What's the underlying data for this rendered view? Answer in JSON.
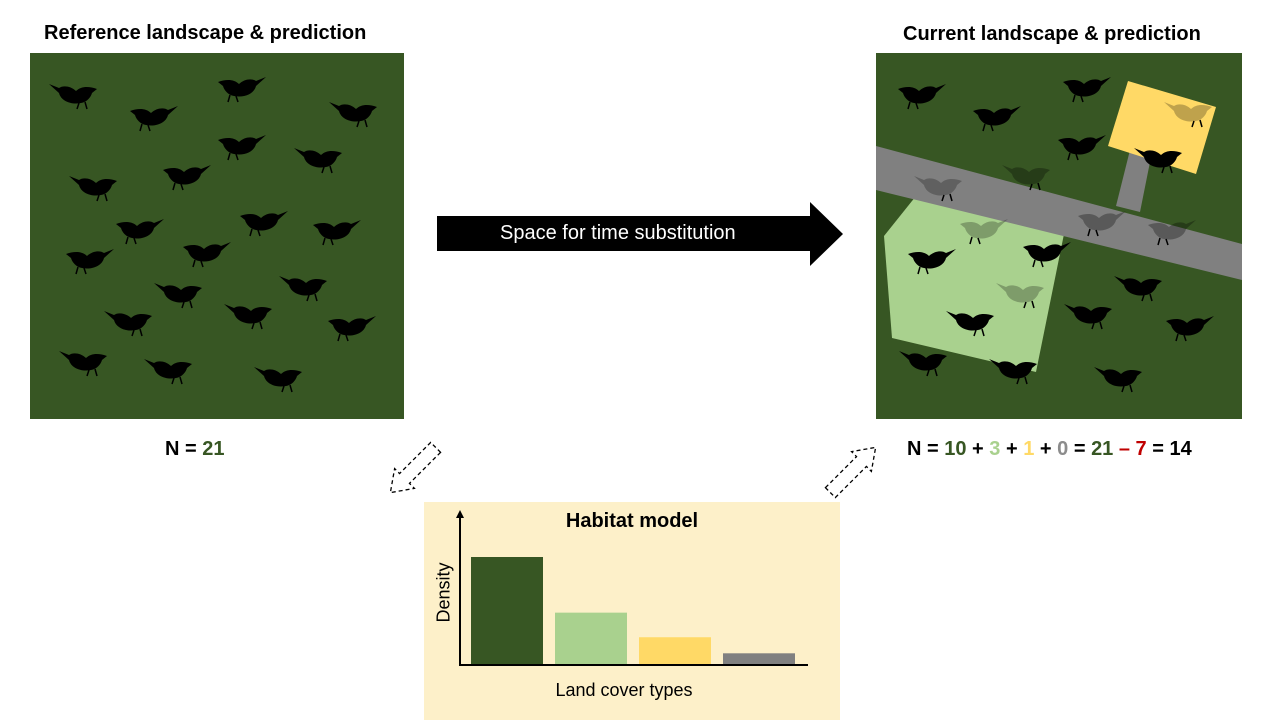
{
  "left_panel": {
    "title": "Reference landscape & prediction"
  },
  "right_panel": {
    "title": "Current landscape & prediction"
  },
  "arrow": {
    "label": "Space for time substitution"
  },
  "left_count": {
    "prefix": "N = ",
    "value": "21"
  },
  "right_count": {
    "parts": [
      {
        "text": "N = ",
        "color": "#000000"
      },
      {
        "text": "10",
        "color": "#375623"
      },
      {
        "text": " + ",
        "color": "#000000"
      },
      {
        "text": "3",
        "color": "#a9d18e"
      },
      {
        "text": " + ",
        "color": "#000000"
      },
      {
        "text": "1",
        "color": "#ffd966"
      },
      {
        "text": " + ",
        "color": "#000000"
      },
      {
        "text": "0",
        "color": "#8c8c8c"
      },
      {
        "text": " = ",
        "color": "#000000"
      },
      {
        "text": "21",
        "color": "#375623"
      },
      {
        "text": " – 7",
        "color": "#c00000"
      },
      {
        "text": " = 14",
        "color": "#000000"
      }
    ]
  },
  "habitat_model": {
    "title": "Habitat model",
    "xlabel": "Land cover types",
    "ylabel": "Density"
  },
  "colors": {
    "forest": "#375623",
    "grassland": "#a9d18e",
    "yellow_patch": "#ffd966",
    "road": "#808080",
    "bird": "#000000"
  },
  "chart_data": {
    "type": "bar",
    "title": "Habitat model",
    "xlabel": "Land cover types",
    "ylabel": "Density",
    "categories": [
      "",
      "",
      "",
      ""
    ],
    "values": [
      1.0,
      0.48,
      0.25,
      0.1
    ],
    "colors": [
      "#375623",
      "#a9d18e",
      "#ffd966",
      "#808080"
    ]
  }
}
